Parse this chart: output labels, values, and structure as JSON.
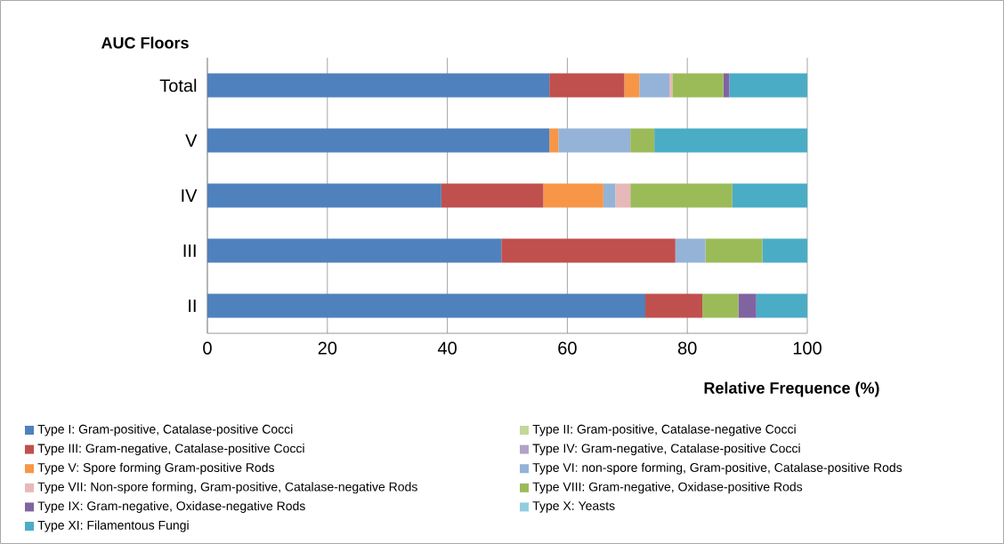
{
  "chart_data": {
    "type": "bar",
    "orientation": "horizontal",
    "stacked": true,
    "ylabel": "AUC Floors",
    "xlabel": "Relative Frequence (%)",
    "categories": [
      "Total",
      "V",
      "IV",
      "III",
      "II"
    ],
    "xlim": [
      0,
      100
    ],
    "xticks": [
      0,
      20,
      40,
      60,
      80,
      100
    ],
    "grid": "x",
    "legend": "bottom",
    "series": [
      {
        "name": "Type I: Gram-positive, Catalase-positive Cocci",
        "color": "#4f81bd",
        "values": [
          57,
          57,
          39,
          49,
          73
        ]
      },
      {
        "name": "Type II:  Gram-positive, Catalase-negative Cocci",
        "color": "#c4d79b",
        "values": [
          0,
          0,
          0,
          0,
          0
        ]
      },
      {
        "name": "Type III: Gram-negative, Catalase-positive Cocci",
        "color": "#c0504d",
        "values": [
          12.5,
          0,
          17,
          29,
          9.5
        ]
      },
      {
        "name": "Type IV: Gram-negative, Catalase-positive Cocci",
        "color": "#b3a2c7",
        "values": [
          0,
          0,
          0,
          0,
          0
        ]
      },
      {
        "name": "Type V: Spore forming Gram-positive Rods",
        "color": "#f79646",
        "values": [
          2.5,
          1.5,
          10,
          0,
          0
        ]
      },
      {
        "name": "Type VI: non-spore forming, Gram-positive, Catalase-positive Rods",
        "color": "#95b3d7",
        "values": [
          5,
          12,
          2,
          5,
          0
        ]
      },
      {
        "name": "Type VII: Non-spore forming, Gram-positive, Catalase-negative Rods",
        "color": "#e6b9b8",
        "values": [
          0.5,
          0,
          2.5,
          0,
          0
        ]
      },
      {
        "name": "Type VIII: Gram-negative, Oxidase-positive Rods",
        "color": "#9bbb59",
        "values": [
          8.5,
          4,
          17,
          9.5,
          6
        ]
      },
      {
        "name": "Type IX: Gram-negative, Oxidase-negative Rods",
        "color": "#8064a2",
        "values": [
          1,
          0,
          0,
          0,
          3
        ]
      },
      {
        "name": "Type X: Yeasts",
        "color": "#93cddd",
        "values": [
          0,
          0,
          0,
          0,
          0
        ]
      },
      {
        "name": "Type XI: Filamentous Fungi",
        "color": "#4bacc6",
        "values": [
          13,
          25.5,
          12.5,
          7.5,
          8.5
        ]
      }
    ]
  }
}
